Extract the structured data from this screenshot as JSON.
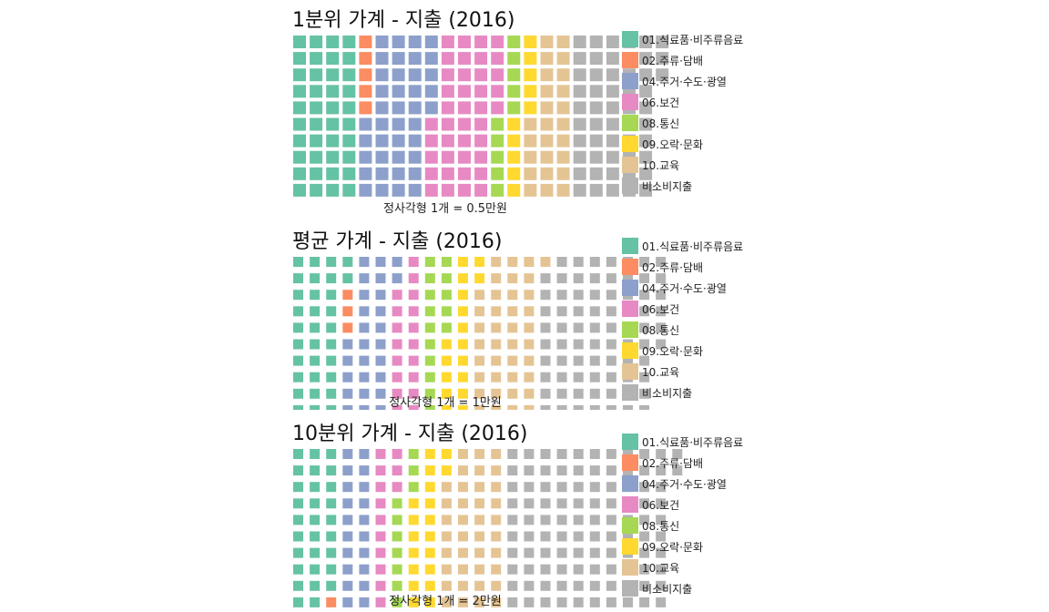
{
  "chart_data": [
    {
      "type": "waffle",
      "title": "1분위 가계 - 지출 (2016)",
      "unit_caption": "정사각형 1개 = 0.5만원",
      "rows": 10,
      "categories": [
        "01.식료품·비주류음료",
        "02.주류·담배",
        "04.주거·수도·광열",
        "06.보건",
        "08.통신",
        "09.오락·문화",
        "10.교육",
        "비소비지출"
      ],
      "values": [
        40,
        5,
        40,
        40,
        10,
        10,
        25,
        53
      ],
      "colors": [
        "#66C2A5",
        "#FC8D62",
        "#8DA0CB",
        "#E78AC3",
        "#A6D854",
        "#FFD92F",
        "#E5C494",
        "#B3B3B3"
      ]
    },
    {
      "type": "waffle",
      "title": "평균 가계 - 지출 (2016)",
      "unit_caption": "정사각형 1개 = 1만원",
      "rows": 10,
      "categories": [
        "01.식료품·비주류음료",
        "02.주류·담배",
        "04.주거·수도·광열",
        "06.보건",
        "08.통신",
        "09.오락·문화",
        "10.교육",
        "비소비지출"
      ],
      "values": [
        32,
        3,
        27,
        18,
        15,
        17,
        39,
        75
      ],
      "colors": [
        "#66C2A5",
        "#FC8D62",
        "#8DA0CB",
        "#E78AC3",
        "#A6D854",
        "#FFD92F",
        "#E5C494",
        "#B3B3B3"
      ]
    },
    {
      "type": "waffle",
      "title": "10분위 가계 - 지출 (2016)",
      "unit_caption": "정사각형 1개 = 2만원",
      "rows": 10,
      "categories": [
        "01.식료품·비주류음료",
        "02.주류·담배",
        "04.주거·수도·광열",
        "06.보건",
        "08.통신",
        "09.오락·문화",
        "10.교육",
        "비소비지출"
      ],
      "values": [
        29,
        1,
        20,
        13,
        10,
        19,
        38,
        102
      ],
      "colors": [
        "#66C2A5",
        "#FC8D62",
        "#8DA0CB",
        "#E78AC3",
        "#A6D854",
        "#FFD92F",
        "#E5C494",
        "#B3B3B3"
      ]
    }
  ]
}
